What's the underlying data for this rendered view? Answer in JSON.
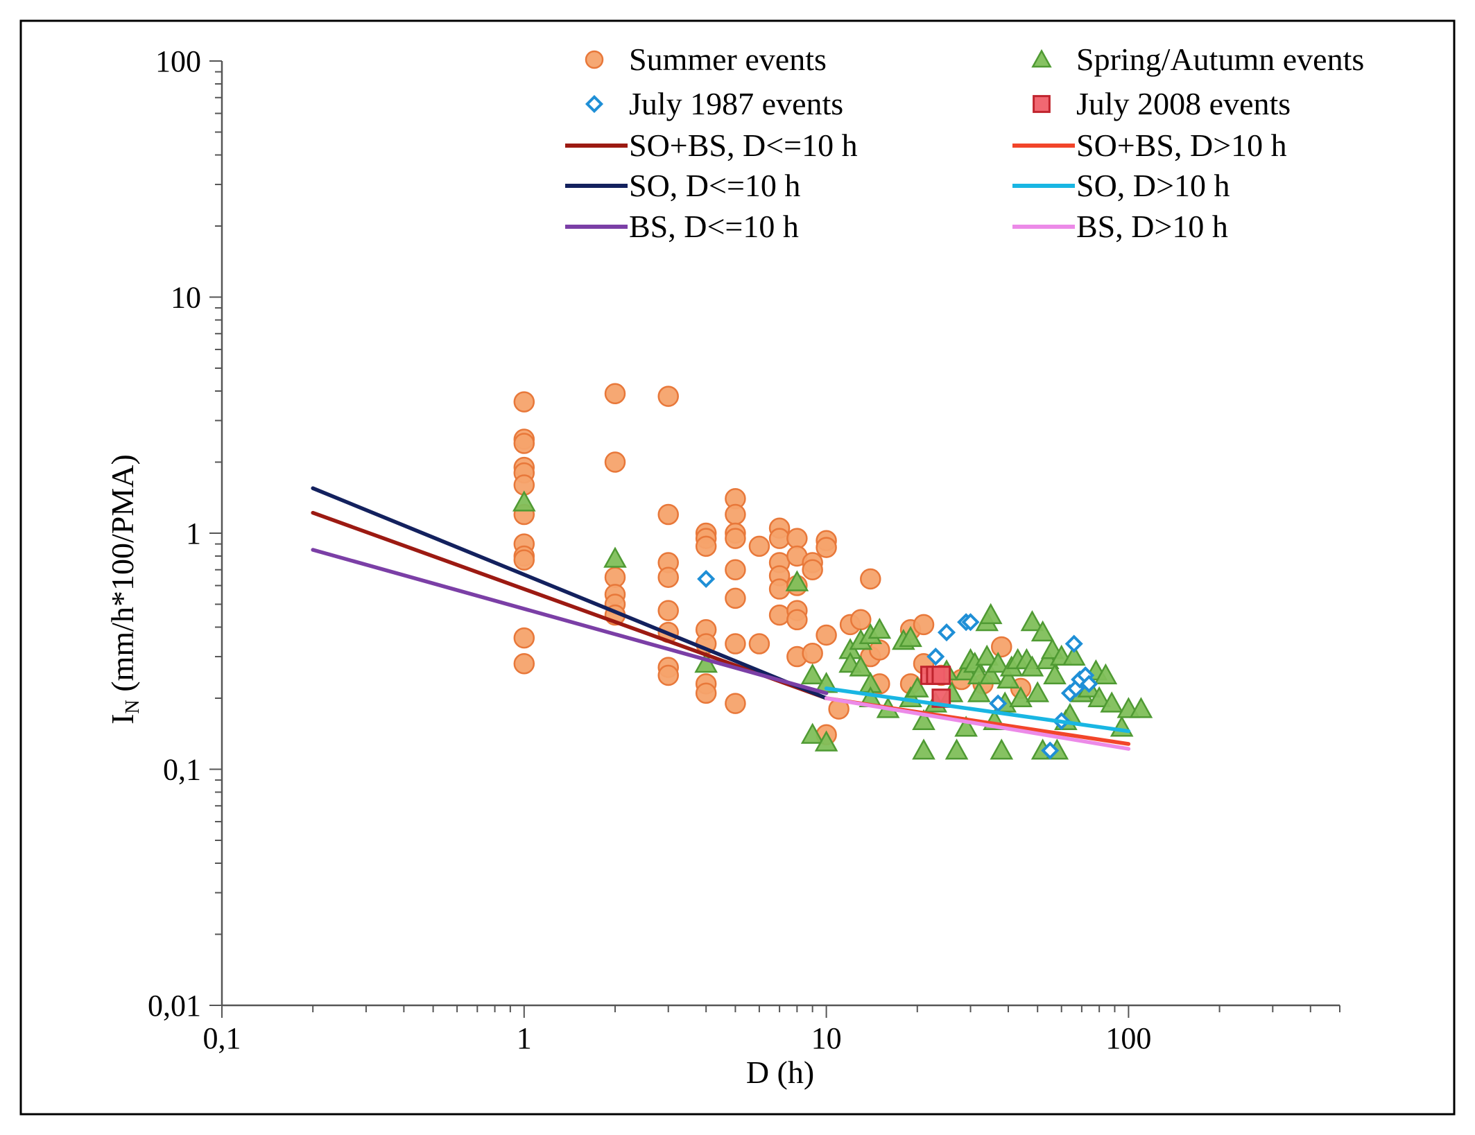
{
  "chart_data": {
    "type": "scatter",
    "title": "",
    "xlabel": "D (h)",
    "ylabel_main": "I",
    "ylabel_sub": "N",
    "ylabel_rest": " (mm/h*100/PMA)",
    "xscale": "log",
    "yscale": "log",
    "xlim": [
      0.1,
      500
    ],
    "ylim": [
      0.01,
      100
    ],
    "grid": false,
    "legend_position": "top",
    "x_ticks": [
      {
        "v": 0.1,
        "label": "0,1"
      },
      {
        "v": 1,
        "label": "1"
      },
      {
        "v": 10,
        "label": "10"
      },
      {
        "v": 100,
        "label": "100"
      }
    ],
    "y_ticks": [
      {
        "v": 0.01,
        "label": "0,01"
      },
      {
        "v": 0.1,
        "label": "0,1"
      },
      {
        "v": 1,
        "label": "1"
      },
      {
        "v": 10,
        "label": "10"
      },
      {
        "v": 100,
        "label": "100"
      }
    ],
    "scatter_series": [
      {
        "name": "Summer events",
        "marker": "circle",
        "fill": "#f5a36b",
        "stroke": "#e8783a",
        "points": [
          [
            1,
            3.6
          ],
          [
            1,
            2.5
          ],
          [
            1,
            2.4
          ],
          [
            1,
            1.9
          ],
          [
            1,
            1.8
          ],
          [
            1,
            1.6
          ],
          [
            1,
            1.2
          ],
          [
            1,
            0.9
          ],
          [
            1,
            0.8
          ],
          [
            1,
            0.77
          ],
          [
            1,
            0.36
          ],
          [
            1,
            0.28
          ],
          [
            2,
            3.9
          ],
          [
            2,
            2.0
          ],
          [
            2,
            0.65
          ],
          [
            2,
            0.55
          ],
          [
            2,
            0.5
          ],
          [
            2,
            0.45
          ],
          [
            3,
            3.8
          ],
          [
            3,
            1.2
          ],
          [
            3,
            0.75
          ],
          [
            3,
            0.65
          ],
          [
            3,
            0.47
          ],
          [
            3,
            0.38
          ],
          [
            3,
            0.27
          ],
          [
            3,
            0.25
          ],
          [
            4,
            1.0
          ],
          [
            4,
            0.95
          ],
          [
            4,
            0.88
          ],
          [
            4,
            0.39
          ],
          [
            4,
            0.34
          ],
          [
            4,
            0.23
          ],
          [
            4,
            0.21
          ],
          [
            5,
            1.4
          ],
          [
            5,
            1.2
          ],
          [
            5,
            1.0
          ],
          [
            5,
            0.95
          ],
          [
            5,
            0.7
          ],
          [
            5,
            0.53
          ],
          [
            5,
            0.34
          ],
          [
            5,
            0.19
          ],
          [
            6,
            0.88
          ],
          [
            6,
            0.34
          ],
          [
            7,
            1.05
          ],
          [
            7,
            0.95
          ],
          [
            7,
            0.75
          ],
          [
            7,
            0.66
          ],
          [
            7,
            0.58
          ],
          [
            7,
            0.45
          ],
          [
            8,
            0.95
          ],
          [
            8,
            0.8
          ],
          [
            8,
            0.6
          ],
          [
            8,
            0.47
          ],
          [
            8,
            0.43
          ],
          [
            8,
            0.3
          ],
          [
            9,
            0.75
          ],
          [
            9,
            0.7
          ],
          [
            9,
            0.31
          ],
          [
            10,
            0.93
          ],
          [
            10,
            0.87
          ],
          [
            10,
            0.37
          ],
          [
            10,
            0.14
          ],
          [
            11,
            0.18
          ],
          [
            12,
            0.41
          ],
          [
            13,
            0.43
          ],
          [
            14,
            0.64
          ],
          [
            14,
            0.3
          ],
          [
            15,
            0.32
          ],
          [
            15,
            0.23
          ],
          [
            19,
            0.39
          ],
          [
            19,
            0.23
          ],
          [
            21,
            0.41
          ],
          [
            21,
            0.28
          ],
          [
            24,
            0.25
          ],
          [
            28,
            0.24
          ],
          [
            33,
            0.23
          ],
          [
            38,
            0.33
          ],
          [
            44,
            0.22
          ]
        ]
      },
      {
        "name": "Spring/Autumn events",
        "marker": "triangle",
        "fill": "#7fbf5a",
        "stroke": "#4f9a33",
        "points": [
          [
            1,
            1.35
          ],
          [
            2,
            0.78
          ],
          [
            4,
            0.28
          ],
          [
            8,
            0.62
          ],
          [
            9,
            0.25
          ],
          [
            9,
            0.14
          ],
          [
            10,
            0.23
          ],
          [
            10,
            0.13
          ],
          [
            12,
            0.32
          ],
          [
            12,
            0.28
          ],
          [
            13,
            0.35
          ],
          [
            13,
            0.27
          ],
          [
            14,
            0.37
          ],
          [
            14,
            0.23
          ],
          [
            14,
            0.2
          ],
          [
            15,
            0.39
          ],
          [
            16,
            0.18
          ],
          [
            18,
            0.35
          ],
          [
            19,
            0.36
          ],
          [
            19,
            0.2
          ],
          [
            20,
            0.22
          ],
          [
            21,
            0.16
          ],
          [
            21,
            0.12
          ],
          [
            23,
            0.19
          ],
          [
            25,
            0.26
          ],
          [
            26,
            0.21
          ],
          [
            27,
            0.12
          ],
          [
            29,
            0.26
          ],
          [
            29,
            0.15
          ],
          [
            30,
            0.29
          ],
          [
            31,
            0.28
          ],
          [
            32,
            0.25
          ],
          [
            32,
            0.21
          ],
          [
            34,
            0.42
          ],
          [
            34,
            0.3
          ],
          [
            35,
            0.45
          ],
          [
            35,
            0.25
          ],
          [
            36,
            0.16
          ],
          [
            37,
            0.28
          ],
          [
            38,
            0.12
          ],
          [
            39,
            0.19
          ],
          [
            40,
            0.24
          ],
          [
            41,
            0.27
          ],
          [
            43,
            0.29
          ],
          [
            44,
            0.2
          ],
          [
            46,
            0.29
          ],
          [
            48,
            0.42
          ],
          [
            48,
            0.27
          ],
          [
            50,
            0.21
          ],
          [
            52,
            0.38
          ],
          [
            52,
            0.12
          ],
          [
            54,
            0.29
          ],
          [
            56,
            0.32
          ],
          [
            57,
            0.25
          ],
          [
            58,
            0.12
          ],
          [
            60,
            0.3
          ],
          [
            62,
            0.16
          ],
          [
            64,
            0.17
          ],
          [
            66,
            0.3
          ],
          [
            70,
            0.21
          ],
          [
            74,
            0.22
          ],
          [
            78,
            0.26
          ],
          [
            80,
            0.2
          ],
          [
            84,
            0.25
          ],
          [
            88,
            0.19
          ],
          [
            95,
            0.15
          ],
          [
            100,
            0.18
          ],
          [
            110,
            0.18
          ]
        ]
      },
      {
        "name": "July 1987 events",
        "marker": "diamond",
        "fill": "#ffffff",
        "stroke": "#1f8fd6",
        "points": [
          [
            4,
            0.64
          ],
          [
            23,
            0.3
          ],
          [
            25,
            0.38
          ],
          [
            29,
            0.42
          ],
          [
            30,
            0.42
          ],
          [
            37,
            0.19
          ],
          [
            55,
            0.12
          ],
          [
            60,
            0.16
          ],
          [
            64,
            0.21
          ],
          [
            66,
            0.34
          ],
          [
            67,
            0.22
          ],
          [
            69,
            0.24
          ],
          [
            72,
            0.25
          ],
          [
            74,
            0.23
          ]
        ]
      },
      {
        "name": "July 2008 events",
        "marker": "square",
        "fill": "#f0606a",
        "stroke": "#c0242e",
        "points": [
          [
            22,
            0.25
          ],
          [
            23,
            0.25
          ],
          [
            24,
            0.25
          ],
          [
            24,
            0.2
          ]
        ]
      }
    ],
    "line_series": [
      {
        "name": "SO+BS, D<=10 h",
        "color": "#9c1a12",
        "x": [
          0.2,
          10
        ],
        "y": [
          1.22,
          0.2
        ]
      },
      {
        "name": "SO+BS, D>10 h",
        "color": "#f2452a",
        "x": [
          10,
          100
        ],
        "y": [
          0.2,
          0.128
        ]
      },
      {
        "name": "SO, D<=10 h",
        "color": "#13215e",
        "x": [
          0.2,
          10
        ],
        "y": [
          1.55,
          0.2
        ]
      },
      {
        "name": "SO, D>10 h",
        "color": "#19b6e3",
        "x": [
          10,
          100
        ],
        "y": [
          0.22,
          0.145
        ]
      },
      {
        "name": "BS, D<=10 h",
        "color": "#7b3fa6",
        "x": [
          0.2,
          10
        ],
        "y": [
          0.85,
          0.21
        ]
      },
      {
        "name": "BS, D>10 h",
        "color": "#ec8ae8",
        "x": [
          10,
          100
        ],
        "y": [
          0.2,
          0.122
        ]
      }
    ],
    "legend": [
      {
        "label": "Summer events",
        "kind": "circle",
        "fill": "#f5a36b",
        "stroke": "#e8783a"
      },
      {
        "label": "Spring/Autumn events",
        "kind": "triangle",
        "fill": "#7fbf5a",
        "stroke": "#4f9a33"
      },
      {
        "label": "July 1987 events",
        "kind": "diamond",
        "fill": "#ffffff",
        "stroke": "#1f8fd6"
      },
      {
        "label": "July 2008 events",
        "kind": "square",
        "fill": "#f0606a",
        "stroke": "#c0242e"
      },
      {
        "label": "SO+BS, D<=10 h",
        "kind": "line",
        "color": "#9c1a12"
      },
      {
        "label": "SO+BS, D>10 h",
        "kind": "line",
        "color": "#f2452a"
      },
      {
        "label": "SO, D<=10 h",
        "kind": "line",
        "color": "#13215e"
      },
      {
        "label": "SO, D>10 h",
        "kind": "line",
        "color": "#19b6e3"
      },
      {
        "label": "BS, D<=10 h",
        "kind": "line",
        "color": "#7b3fa6"
      },
      {
        "label": "BS, D>10 h",
        "kind": "line",
        "color": "#ec8ae8"
      }
    ]
  }
}
